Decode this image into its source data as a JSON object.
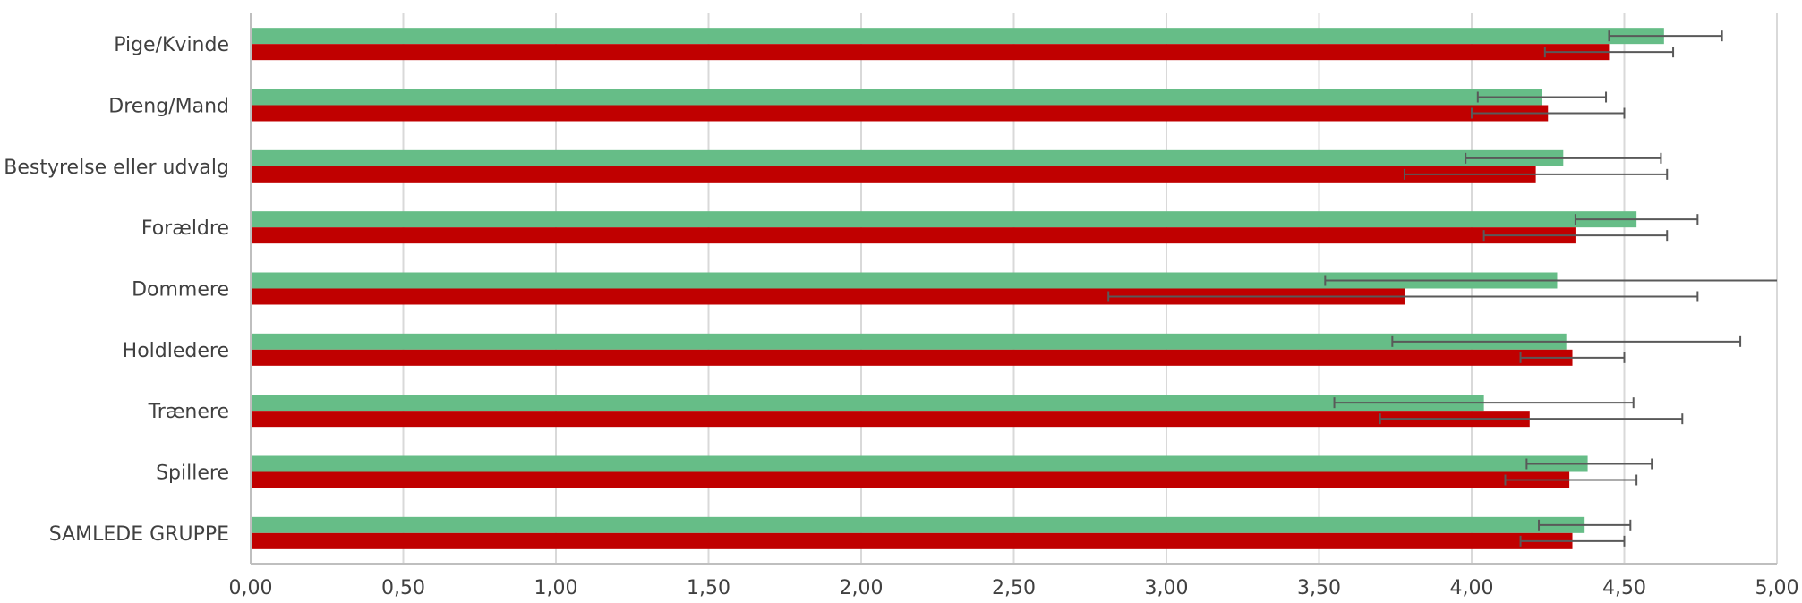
{
  "chart_data": {
    "type": "bar",
    "orientation": "horizontal",
    "categories": [
      "Pige/Kvinde",
      "Dreng/Mand",
      "Bestyrelse eller udvalg",
      "Forældre",
      "Dommere",
      "Holdledere",
      "Trænere",
      "Spillere",
      "SAMLEDE GRUPPE"
    ],
    "series": [
      {
        "color": "#66bd87",
        "values": [
          4.63,
          4.23,
          4.3,
          4.54,
          4.28,
          4.31,
          4.04,
          4.38,
          4.37
        ],
        "error_low": [
          4.45,
          4.02,
          3.98,
          4.34,
          3.52,
          3.74,
          3.55,
          4.18,
          4.22
        ],
        "error_high": [
          4.82,
          4.44,
          4.62,
          4.74,
          5.0,
          4.88,
          4.53,
          4.59,
          4.52
        ]
      },
      {
        "color": "#c00000",
        "values": [
          4.45,
          4.25,
          4.21,
          4.34,
          3.78,
          4.33,
          4.19,
          4.32,
          4.33
        ],
        "error_low": [
          4.24,
          4.0,
          3.78,
          4.04,
          2.81,
          4.16,
          3.7,
          4.11,
          4.16
        ],
        "error_high": [
          4.66,
          4.5,
          4.64,
          4.64,
          4.74,
          4.5,
          4.69,
          4.54,
          4.5
        ]
      }
    ],
    "xlim": [
      0,
      5
    ],
    "x_ticks": [
      "0,00",
      "0,50",
      "1,00",
      "1,50",
      "2,00",
      "2,50",
      "3,00",
      "3,50",
      "4,00",
      "4,50",
      "5,00"
    ],
    "grid": "vertical",
    "legend": "none",
    "title": "",
    "xlabel": "",
    "ylabel": ""
  }
}
